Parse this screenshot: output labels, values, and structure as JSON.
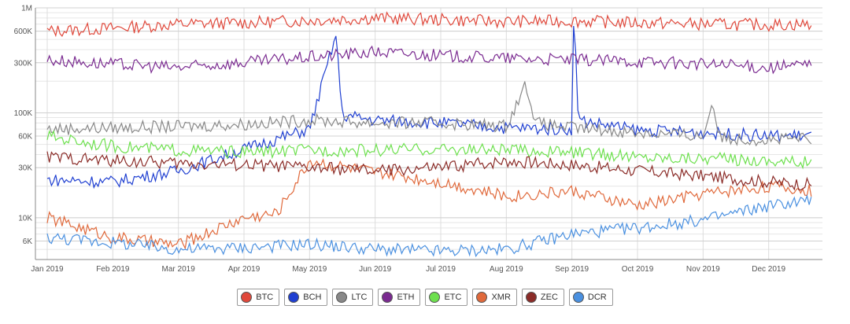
{
  "chart_data": {
    "type": "line",
    "y_scale": "log",
    "ylim": [
      4000,
      1000000
    ],
    "y_ticks": [
      {
        "value": 1000000,
        "label": "1M"
      },
      {
        "value": 600000,
        "label": "600K"
      },
      {
        "value": 300000,
        "label": "300K"
      },
      {
        "value": 100000,
        "label": "100K"
      },
      {
        "value": 60000,
        "label": "60K"
      },
      {
        "value": 30000,
        "label": "30K"
      },
      {
        "value": 10000,
        "label": "10K"
      },
      {
        "value": 6000,
        "label": "6K"
      }
    ],
    "x_ticks": [
      "Jan 2019",
      "Feb 2019",
      "Mar 2019",
      "Apr 2019",
      "May 2019",
      "Jun 2019",
      "Jul 2019",
      "Aug 2019",
      "Sep 2019",
      "Oct 2019",
      "Nov 2019",
      "Dec 2019"
    ],
    "grid": true,
    "legend_position": "bottom",
    "series": [
      {
        "name": "BTC",
        "color": "#e0483b",
        "anchors": [
          [
            0,
            600000
          ],
          [
            1,
            640000
          ],
          [
            2,
            700000
          ],
          [
            3,
            720000
          ],
          [
            4,
            760000
          ],
          [
            5,
            800000
          ],
          [
            6,
            770000
          ],
          [
            7,
            740000
          ],
          [
            8,
            750000
          ],
          [
            9,
            720000
          ],
          [
            10,
            700000
          ],
          [
            11,
            690000
          ],
          [
            12,
            700000
          ]
        ]
      },
      {
        "name": "BCH",
        "color": "#1f3fd1",
        "anchors": [
          [
            0,
            23000
          ],
          [
            1,
            22000
          ],
          [
            2,
            28000
          ],
          [
            3,
            45000
          ],
          [
            4,
            70000
          ],
          [
            4.4,
            550000
          ],
          [
            4.5,
            95000
          ],
          [
            5,
            85000
          ],
          [
            6,
            80000
          ],
          [
            7,
            72000
          ],
          [
            8,
            70000
          ],
          [
            8.03,
            900000
          ],
          [
            8.1,
            85000
          ],
          [
            9,
            68000
          ],
          [
            10,
            65000
          ],
          [
            11,
            60000
          ],
          [
            12,
            62000
          ]
        ]
      },
      {
        "name": "LTC",
        "color": "#888888",
        "anchors": [
          [
            0,
            70000
          ],
          [
            1,
            72000
          ],
          [
            2,
            74000
          ],
          [
            3,
            78000
          ],
          [
            4,
            85000
          ],
          [
            5,
            80000
          ],
          [
            6,
            80000
          ],
          [
            7,
            75000
          ],
          [
            7.3,
            190000
          ],
          [
            7.45,
            80000
          ],
          [
            8,
            72000
          ],
          [
            9,
            65000
          ],
          [
            10,
            60000
          ],
          [
            10.15,
            130000
          ],
          [
            10.25,
            58000
          ],
          [
            11,
            55000
          ],
          [
            12,
            58000
          ]
        ]
      },
      {
        "name": "ETH",
        "color": "#7a2a90",
        "anchors": [
          [
            0,
            320000
          ],
          [
            1,
            290000
          ],
          [
            2,
            270000
          ],
          [
            3,
            300000
          ],
          [
            4,
            340000
          ],
          [
            5,
            380000
          ],
          [
            6,
            350000
          ],
          [
            7,
            330000
          ],
          [
            8,
            320000
          ],
          [
            9,
            310000
          ],
          [
            10,
            290000
          ],
          [
            11,
            270000
          ],
          [
            12,
            300000
          ]
        ]
      },
      {
        "name": "ETC",
        "color": "#6de04e",
        "anchors": [
          [
            0,
            60000
          ],
          [
            1,
            48000
          ],
          [
            2,
            44000
          ],
          [
            3,
            42000
          ],
          [
            4,
            44000
          ],
          [
            5,
            44000
          ],
          [
            6,
            45000
          ],
          [
            7,
            44000
          ],
          [
            8,
            42000
          ],
          [
            9,
            38000
          ],
          [
            10,
            37000
          ],
          [
            11,
            35000
          ],
          [
            12,
            33000
          ]
        ]
      },
      {
        "name": "XMR",
        "color": "#e0693b",
        "anchors": [
          [
            0,
            10000
          ],
          [
            1,
            6500
          ],
          [
            2,
            5500
          ],
          [
            3,
            10000
          ],
          [
            3.5,
            11000
          ],
          [
            4,
            35000
          ],
          [
            5,
            27000
          ],
          [
            6,
            22000
          ],
          [
            7,
            16000
          ],
          [
            8,
            18000
          ],
          [
            9,
            13000
          ],
          [
            10,
            17000
          ],
          [
            11,
            20000
          ],
          [
            12,
            17000
          ]
        ]
      },
      {
        "name": "ZEC",
        "color": "#8b2c28",
        "anchors": [
          [
            0,
            38000
          ],
          [
            1,
            35000
          ],
          [
            2,
            33000
          ],
          [
            3,
            32000
          ],
          [
            4,
            30000
          ],
          [
            5,
            28000
          ],
          [
            6,
            30000
          ],
          [
            7,
            35000
          ],
          [
            8,
            32000
          ],
          [
            9,
            28000
          ],
          [
            10,
            25000
          ],
          [
            11,
            22000
          ],
          [
            12,
            20000
          ]
        ]
      },
      {
        "name": "DCR",
        "color": "#4a90e0",
        "anchors": [
          [
            0,
            6500
          ],
          [
            1,
            5800
          ],
          [
            2,
            5000
          ],
          [
            3,
            5200
          ],
          [
            4,
            5600
          ],
          [
            5,
            5000
          ],
          [
            6,
            4800
          ],
          [
            7,
            5000
          ],
          [
            8,
            7000
          ],
          [
            9,
            8000
          ],
          [
            10,
            9500
          ],
          [
            11,
            13000
          ],
          [
            12,
            16000
          ]
        ]
      }
    ]
  }
}
